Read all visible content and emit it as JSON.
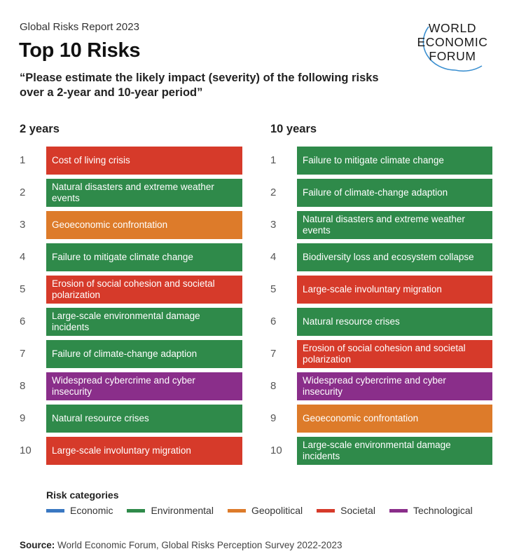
{
  "header": {
    "report": "Global Risks Report 2023",
    "title": "Top 10 Risks",
    "question": "“Please estimate the likely impact (severity) of the following risks over a 2-year and 10-year period”"
  },
  "logo": {
    "line1": "WORLD",
    "line2": "ECONOMIC",
    "line3": "FORUM",
    "icon": "wef-logo-arc-icon"
  },
  "chart_data": {
    "type": "table",
    "colors": {
      "Economic": "#3a78c2",
      "Environmental": "#2f8a4a",
      "Geopolitical": "#dd7b2a",
      "Societal": "#d63a2a",
      "Technological": "#8a2e8a"
    },
    "columns": [
      {
        "heading": "2 years",
        "rows": [
          {
            "rank": "1",
            "label": "Cost of living crisis",
            "category": "Societal"
          },
          {
            "rank": "2",
            "label": "Natural disasters and extreme weather events",
            "category": "Environmental"
          },
          {
            "rank": "3",
            "label": "Geoeconomic confrontation",
            "category": "Geopolitical"
          },
          {
            "rank": "4",
            "label": "Failure to mitigate climate change",
            "category": "Environmental"
          },
          {
            "rank": "5",
            "label": "Erosion of social cohesion and societal polarization",
            "category": "Societal"
          },
          {
            "rank": "6",
            "label": "Large-scale environmental damage incidents",
            "category": "Environmental"
          },
          {
            "rank": "7",
            "label": "Failure of climate-change adaption",
            "category": "Environmental"
          },
          {
            "rank": "8",
            "label": "Widespread cybercrime and cyber insecurity",
            "category": "Technological"
          },
          {
            "rank": "9",
            "label": "Natural resource crises",
            "category": "Environmental"
          },
          {
            "rank": "10",
            "label": "Large-scale involuntary migration",
            "category": "Societal"
          }
        ]
      },
      {
        "heading": "10 years",
        "rows": [
          {
            "rank": "1",
            "label": "Failure to mitigate climate change",
            "category": "Environmental"
          },
          {
            "rank": "2",
            "label": "Failure of climate-change adaption",
            "category": "Environmental"
          },
          {
            "rank": "3",
            "label": "Natural disasters and extreme weather events",
            "category": "Environmental"
          },
          {
            "rank": "4",
            "label": "Biodiversity loss and ecosystem collapse",
            "category": "Environmental"
          },
          {
            "rank": "5",
            "label": "Large-scale involuntary migration",
            "category": "Societal"
          },
          {
            "rank": "6",
            "label": "Natural resource crises",
            "category": "Environmental"
          },
          {
            "rank": "7",
            "label": "Erosion of social cohesion and societal polarization",
            "category": "Societal"
          },
          {
            "rank": "8",
            "label": "Widespread cybercrime and cyber insecurity",
            "category": "Technological"
          },
          {
            "rank": "9",
            "label": "Geoeconomic confrontation",
            "category": "Geopolitical"
          },
          {
            "rank": "10",
            "label": "Large-scale environmental damage incidents",
            "category": "Environmental"
          }
        ]
      }
    ],
    "legend": {
      "title": "Risk categories",
      "items": [
        "Economic",
        "Environmental",
        "Geopolitical",
        "Societal",
        "Technological"
      ]
    }
  },
  "source": {
    "label": "Source:",
    "text": "World Economic Forum, Global Risks Perception Survey 2022-2023"
  }
}
